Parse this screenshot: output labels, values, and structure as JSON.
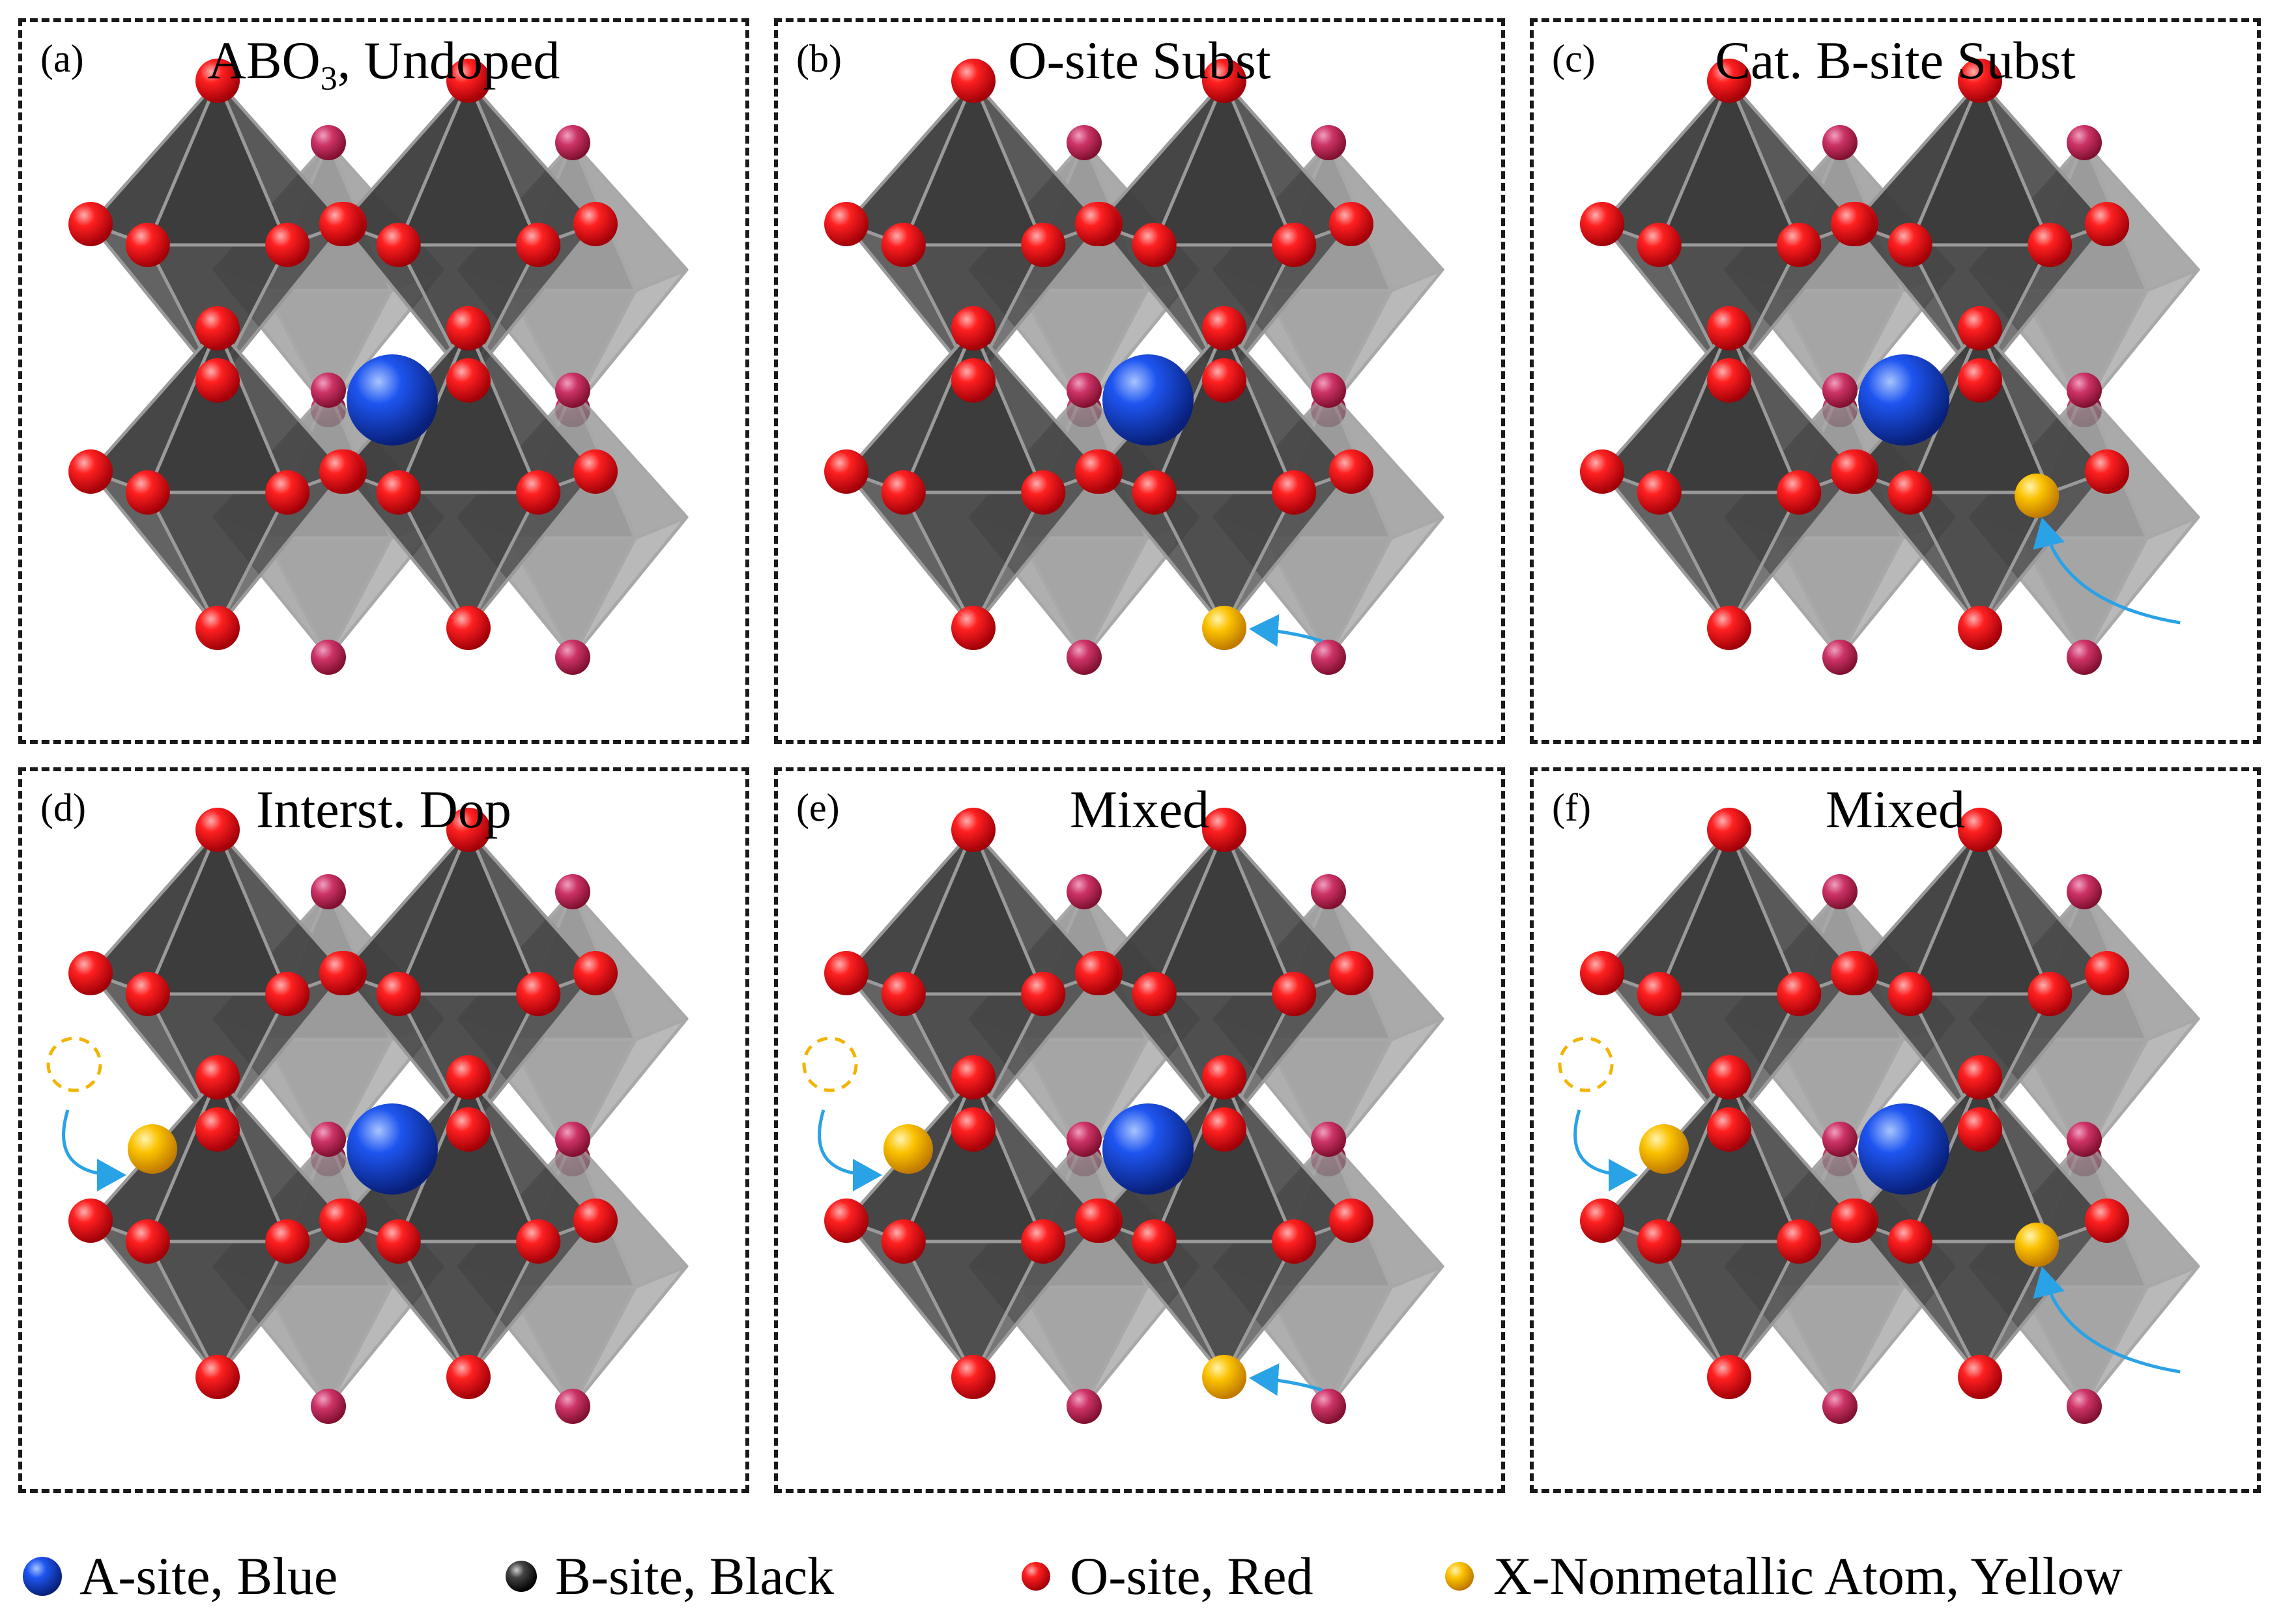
{
  "panels": [
    {
      "letter": "(a)",
      "title": "ABO",
      "title_sub": "3",
      "title_tail": ", Undoped",
      "variant": "undoped"
    },
    {
      "letter": "(b)",
      "title": "O-site Subst",
      "variant": "o-site"
    },
    {
      "letter": "(c)",
      "title": "Cat. B-site Subst",
      "variant": "b-site"
    },
    {
      "letter": "(d)",
      "title": "Interst. Dop",
      "variant": "interstitial"
    },
    {
      "letter": "(e)",
      "title": "Mixed",
      "variant": "mixed-o"
    },
    {
      "letter": "(f)",
      "title": "Mixed",
      "variant": "mixed-b"
    }
  ],
  "legend": [
    {
      "label": "A-site, Blue",
      "icon": "blue-sphere-icon",
      "color": "#1848e0"
    },
    {
      "label": "B-site, Black",
      "icon": "black-sphere-icon",
      "color": "#1a1a1a"
    },
    {
      "label": "O-site, Red",
      "icon": "red-sphere-icon",
      "color": "#e8141c"
    },
    {
      "label": "X-Nonmetallic Atom, Yellow",
      "icon": "yellow-sphere-icon",
      "color": "#f5b800"
    }
  ],
  "colors": {
    "octahedron_front": "#3c3c3c",
    "octahedron_back": "#8a8a8a",
    "oxygen": "#e8141c",
    "oxygen_back": "#c8305a",
    "a_site": "#1848e0",
    "dopant": "#f5b800",
    "arrow": "#2aa2e6",
    "vacancy_outline": "#f2b400"
  }
}
